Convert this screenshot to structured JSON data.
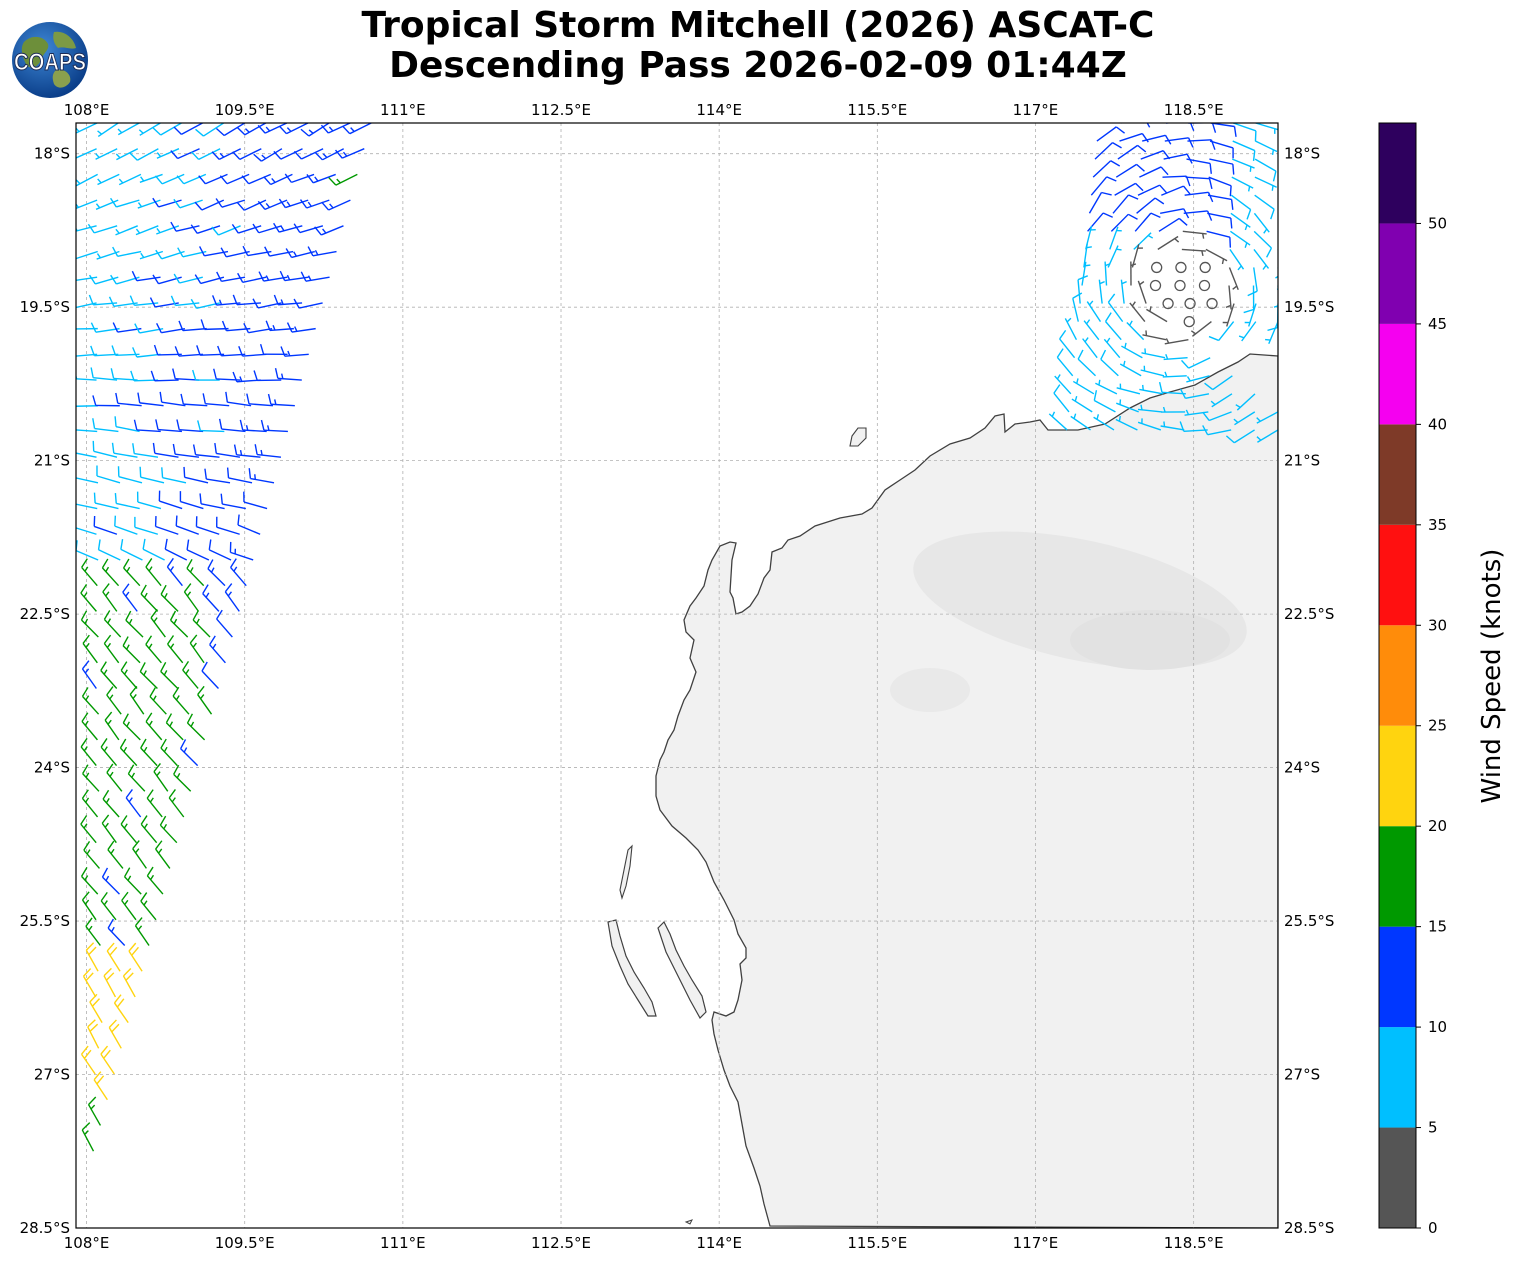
{
  "title": {
    "line1": "Tropical Storm Mitchell (2026) ASCAT-C",
    "line2": "Descending Pass 2026-02-09 01:44Z"
  },
  "logo": {
    "icon": "coaps-globe-icon",
    "text": "COAPS"
  },
  "map": {
    "lon_range": [
      107.9,
      119.3
    ],
    "lat_range": [
      -28.5,
      -17.7
    ],
    "lon_ticks": [
      108,
      109.5,
      111,
      112.5,
      114,
      115.5,
      117,
      118.5
    ],
    "lon_labels": [
      "108°E",
      "109.5°E",
      "111°E",
      "112.5°E",
      "114°E",
      "115.5°E",
      "117°E",
      "118.5°E"
    ],
    "lat_ticks": [
      -18,
      -19.5,
      -21,
      -22.5,
      -24,
      -25.5,
      -27,
      -28.5
    ],
    "lat_labels": [
      "18°S",
      "19.5°S",
      "21°S",
      "22.5°S",
      "24°S",
      "25.5°S",
      "27°S",
      "28.5°S"
    ],
    "gridlines": true,
    "land_color": "#f2f2f2",
    "coast_color": "#404040"
  },
  "colorbar": {
    "label": "Wind Speed (knots)",
    "tick_values": [
      0,
      5,
      10,
      15,
      20,
      25,
      30,
      35,
      40,
      45,
      50
    ],
    "tick_labels": [
      "0",
      "5",
      "10",
      "15",
      "20",
      "25",
      "30",
      "35",
      "40",
      "45",
      "50"
    ],
    "max": 55,
    "bands": [
      {
        "from": 0,
        "to": 5,
        "color": "#555555"
      },
      {
        "from": 5,
        "to": 10,
        "color": "#00bfff"
      },
      {
        "from": 10,
        "to": 15,
        "color": "#0037ff"
      },
      {
        "from": 15,
        "to": 20,
        "color": "#009900"
      },
      {
        "from": 20,
        "to": 25,
        "color": "#ffd40f"
      },
      {
        "from": 25,
        "to": 30,
        "color": "#ff8c0a"
      },
      {
        "from": 30,
        "to": 35,
        "color": "#ff1010"
      },
      {
        "from": 35,
        "to": 40,
        "color": "#7e3a28"
      },
      {
        "from": 40,
        "to": 45,
        "color": "#f500f0"
      },
      {
        "from": 45,
        "to": 50,
        "color": "#8000b0"
      },
      {
        "from": 50,
        "to": 55,
        "color": "#2e005e"
      }
    ]
  },
  "swaths": {
    "west": {
      "rows": 42,
      "lat_start": -17.7,
      "lat_end": -28.0,
      "lon_west_start": 107.9,
      "lon_west_end": 107.9,
      "lon_east_start": 110.7,
      "lon_east_end": 108.0
    },
    "east": {
      "rows": 18,
      "lat_start": -17.7,
      "lat_end": -20.7,
      "lon_west_start": 117.6,
      "lon_west_end": 117.3,
      "lon_east_start": 119.3,
      "lon_east_end": 119.3
    },
    "calm_center": {
      "lon": 118.4,
      "lat": -19.3
    }
  }
}
